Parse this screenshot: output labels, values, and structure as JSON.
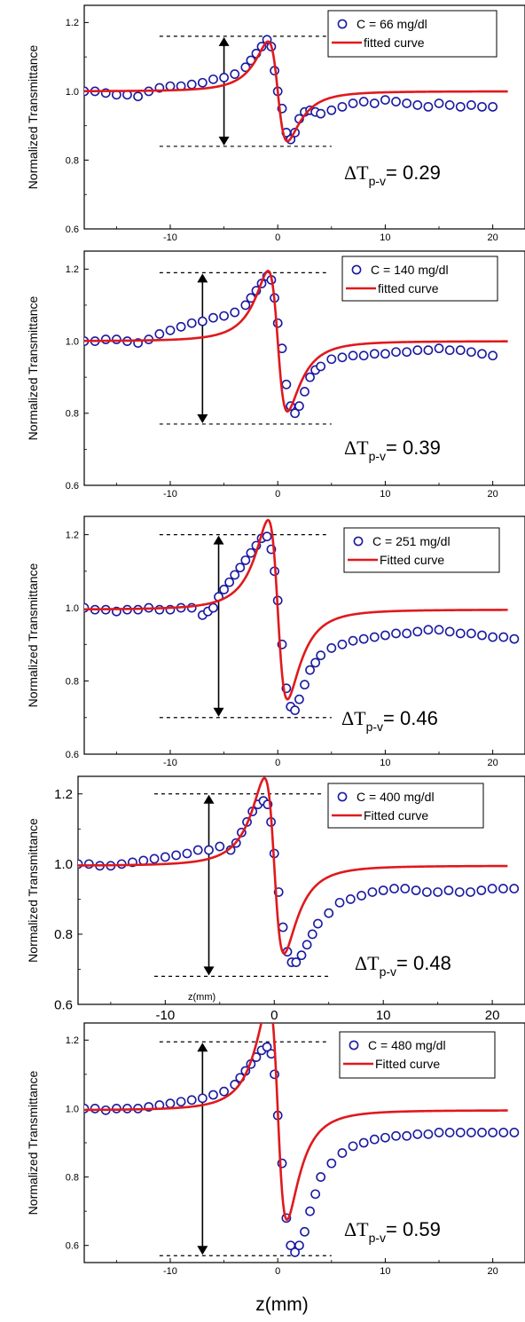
{
  "figure": {
    "xlabel": "z(mm)",
    "panel4_inline_xlabel": "z(mm)"
  },
  "chart_data": [
    {
      "type": "scatter",
      "ylabel": "Normalized Transmittance",
      "xlim": [
        -18,
        23
      ],
      "ylim": [
        0.6,
        1.25
      ],
      "xticks": [
        -10,
        0,
        10,
        20
      ],
      "yticks": [
        0.6,
        0.8,
        1.0,
        1.2
      ],
      "ytick_labels": [
        "0.6",
        "0.8",
        "1.0",
        "1.2"
      ],
      "legend": [
        "C = 66 mg/dl",
        "fitted curve"
      ],
      "annotation": {
        "symbol": "ΔT",
        "subscript": "p-v",
        "value": "= 0.29"
      },
      "peak_line_y": 1.16,
      "valley_line_y": 0.84,
      "arrow_x": -5,
      "series": [
        {
          "name": "C = 66 mg/dl",
          "kind": "markers",
          "color": "#1a1aa0",
          "x": [
            -18,
            -17,
            -16,
            -15,
            -14,
            -13,
            -12,
            -11,
            -10,
            -9,
            -8,
            -7,
            -6,
            -5,
            -4,
            -3,
            -2.5,
            -2,
            -1.5,
            -1,
            -0.6,
            -0.3,
            0,
            0.4,
            0.8,
            1.2,
            1.6,
            2,
            2.5,
            3,
            3.5,
            4,
            5,
            6,
            7,
            8,
            9,
            10,
            11,
            12,
            13,
            14,
            15,
            16,
            17,
            18,
            19,
            20
          ],
          "y": [
            1.0,
            1.0,
            0.995,
            0.99,
            0.99,
            0.985,
            1.0,
            1.01,
            1.015,
            1.015,
            1.02,
            1.025,
            1.035,
            1.04,
            1.05,
            1.07,
            1.09,
            1.11,
            1.13,
            1.15,
            1.13,
            1.06,
            1.0,
            0.95,
            0.88,
            0.86,
            0.88,
            0.92,
            0.94,
            0.945,
            0.94,
            0.935,
            0.945,
            0.955,
            0.965,
            0.97,
            0.965,
            0.975,
            0.97,
            0.965,
            0.96,
            0.955,
            0.965,
            0.96,
            0.955,
            0.96,
            0.955,
            0.955
          ]
        },
        {
          "name": "fitted curve",
          "kind": "line",
          "color": "#e0191c",
          "center": 0,
          "z0": 1.05,
          "dT": 0.29,
          "base": 1.0
        }
      ]
    },
    {
      "type": "scatter",
      "ylabel": "Normalized Transmittance",
      "xlim": [
        -18,
        23
      ],
      "ylim": [
        0.6,
        1.25
      ],
      "xticks": [
        -10,
        0,
        10,
        20
      ],
      "yticks": [
        0.6,
        0.8,
        1.0,
        1.2
      ],
      "ytick_labels": [
        "0.6",
        "0.8",
        "1.0",
        "1.2"
      ],
      "legend": [
        "C = 140 mg/dl",
        "fitted curve"
      ],
      "annotation": {
        "symbol": "ΔT",
        "subscript": "p-v",
        "value": "= 0.39"
      },
      "peak_line_y": 1.19,
      "valley_line_y": 0.77,
      "arrow_x": -7,
      "series": [
        {
          "name": "C = 140 mg/dl",
          "kind": "markers",
          "color": "#1a1aa0",
          "x": [
            -18,
            -17,
            -16,
            -15,
            -14,
            -13,
            -12,
            -11,
            -10,
            -9,
            -8,
            -7,
            -6,
            -5,
            -4,
            -3,
            -2.5,
            -2,
            -1.5,
            -1,
            -0.6,
            -0.3,
            0,
            0.4,
            0.8,
            1.2,
            1.6,
            2,
            2.5,
            3,
            3.5,
            4,
            5,
            6,
            7,
            8,
            9,
            10,
            11,
            12,
            13,
            14,
            15,
            16,
            17,
            18,
            19,
            20
          ],
          "y": [
            1.0,
            1.0,
            1.005,
            1.005,
            1.0,
            0.995,
            1.005,
            1.02,
            1.03,
            1.04,
            1.05,
            1.055,
            1.065,
            1.07,
            1.08,
            1.1,
            1.12,
            1.14,
            1.16,
            1.18,
            1.17,
            1.12,
            1.05,
            0.98,
            0.88,
            0.82,
            0.8,
            0.82,
            0.86,
            0.9,
            0.92,
            0.93,
            0.95,
            0.955,
            0.96,
            0.96,
            0.965,
            0.965,
            0.97,
            0.97,
            0.975,
            0.975,
            0.98,
            0.975,
            0.975,
            0.97,
            0.965,
            0.96
          ]
        },
        {
          "name": "fitted curve",
          "kind": "line",
          "color": "#e0191c",
          "center": 0,
          "z0": 1.05,
          "dT": 0.39,
          "base": 1.0
        }
      ]
    },
    {
      "type": "scatter",
      "ylabel": "Normalized Transmittance",
      "xlim": [
        -18,
        23
      ],
      "ylim": [
        0.6,
        1.25
      ],
      "xticks": [
        -10,
        0,
        10,
        20
      ],
      "yticks": [
        0.6,
        0.8,
        1.0,
        1.2
      ],
      "ytick_labels": [
        "0.6",
        "0.8",
        "1.0",
        "1.2"
      ],
      "legend": [
        "C = 251 mg/dl",
        "Fitted curve"
      ],
      "annotation": {
        "symbol": "ΔT",
        "subscript": "p-v",
        "value": "= 0.46"
      },
      "peak_line_y": 1.2,
      "valley_line_y": 0.7,
      "arrow_x": -5.5,
      "series": [
        {
          "name": "C = 251 mg/dl",
          "kind": "markers",
          "color": "#1a1aa0",
          "x": [
            -18,
            -17,
            -16,
            -15,
            -14,
            -13,
            -12,
            -11,
            -10,
            -9,
            -8,
            -7,
            -6.5,
            -6,
            -5.5,
            -5,
            -4.5,
            -4,
            -3.5,
            -3,
            -2.5,
            -2,
            -1.5,
            -1,
            -0.6,
            -0.3,
            0,
            0.4,
            0.8,
            1.2,
            1.6,
            2,
            2.5,
            3,
            3.5,
            4,
            5,
            6,
            7,
            8,
            9,
            10,
            11,
            12,
            13,
            14,
            15,
            16,
            17,
            18,
            19,
            20,
            21,
            22
          ],
          "y": [
            1.0,
            0.995,
            0.995,
            0.99,
            0.995,
            0.995,
            1.0,
            0.995,
            0.995,
            1.0,
            1.0,
            0.98,
            0.99,
            1.0,
            1.03,
            1.05,
            1.07,
            1.09,
            1.11,
            1.13,
            1.15,
            1.17,
            1.19,
            1.195,
            1.16,
            1.1,
            1.02,
            0.9,
            0.78,
            0.73,
            0.72,
            0.75,
            0.79,
            0.83,
            0.85,
            0.87,
            0.89,
            0.9,
            0.91,
            0.915,
            0.92,
            0.925,
            0.93,
            0.93,
            0.935,
            0.94,
            0.94,
            0.935,
            0.93,
            0.93,
            0.925,
            0.92,
            0.92,
            0.915
          ]
        },
        {
          "name": "Fitted curve",
          "kind": "line",
          "color": "#e0191c",
          "center": 0,
          "z0": 1.05,
          "dT": 0.49,
          "base": 0.995
        }
      ]
    },
    {
      "type": "scatter",
      "ylabel": "Normalized Transmittance",
      "xlim": [
        -18,
        23
      ],
      "ylim": [
        0.6,
        1.25
      ],
      "xticks": [
        -10,
        0,
        10,
        20
      ],
      "yticks": [
        0.6,
        0.8,
        1.0,
        1.2
      ],
      "ytick_labels": [
        "0.6",
        "0.8",
        "1.0",
        "1.2"
      ],
      "legend": [
        "C = 400 mg/dl",
        "Fitted curve"
      ],
      "annotation": {
        "symbol": "ΔT",
        "subscript": "p-v",
        "value": "= 0.48"
      },
      "peak_line_y": 1.2,
      "valley_line_y": 0.68,
      "arrow_x": -6,
      "series": [
        {
          "name": "C = 400 mg/dl",
          "kind": "markers",
          "color": "#1a1aa0",
          "x": [
            -18,
            -17,
            -16,
            -15,
            -14,
            -13,
            -12,
            -11,
            -10,
            -9,
            -8,
            -7,
            -6,
            -5,
            -4,
            -3.5,
            -3,
            -2.5,
            -2,
            -1.5,
            -1,
            -0.6,
            -0.3,
            0,
            0.4,
            0.8,
            1.2,
            1.6,
            2,
            2.5,
            3,
            3.5,
            4,
            5,
            6,
            7,
            8,
            9,
            10,
            11,
            12,
            13,
            14,
            15,
            16,
            17,
            18,
            19,
            20,
            21,
            22
          ],
          "y": [
            1.0,
            1.0,
            0.995,
            0.995,
            1.0,
            1.005,
            1.01,
            1.015,
            1.02,
            1.025,
            1.03,
            1.04,
            1.04,
            1.05,
            1.04,
            1.06,
            1.09,
            1.12,
            1.15,
            1.17,
            1.18,
            1.17,
            1.12,
            1.03,
            0.92,
            0.82,
            0.75,
            0.72,
            0.72,
            0.74,
            0.77,
            0.8,
            0.83,
            0.86,
            0.89,
            0.9,
            0.91,
            0.92,
            0.925,
            0.93,
            0.93,
            0.925,
            0.92,
            0.92,
            0.925,
            0.92,
            0.92,
            0.925,
            0.93,
            0.93,
            0.93
          ]
        },
        {
          "name": "Fitted curve",
          "kind": "line",
          "color": "#e0191c",
          "center": 0,
          "z0": 1.05,
          "dT": 0.5,
          "base": 0.995
        }
      ]
    },
    {
      "type": "scatter",
      "ylabel": "Normalized Transmittance",
      "xlim": [
        -18,
        23
      ],
      "ylim": [
        0.55,
        1.25
      ],
      "xticks": [
        -10,
        0,
        10,
        20
      ],
      "yticks": [
        0.6,
        0.8,
        1.0,
        1.2
      ],
      "ytick_labels": [
        "0.6",
        "0.8",
        "1.0",
        "1.2"
      ],
      "legend": [
        "C = 480 mg/dl",
        "Fitted curve"
      ],
      "annotation": {
        "symbol": "ΔT",
        "subscript": "p-v",
        "value": "= 0.59"
      },
      "peak_line_y": 1.195,
      "valley_line_y": 0.57,
      "arrow_x": -7,
      "series": [
        {
          "name": "C = 480 mg/dl",
          "kind": "markers",
          "color": "#1a1aa0",
          "x": [
            -18,
            -17,
            -16,
            -15,
            -14,
            -13,
            -12,
            -11,
            -10,
            -9,
            -8,
            -7,
            -6,
            -5,
            -4,
            -3.5,
            -3,
            -2.5,
            -2,
            -1.5,
            -1,
            -0.6,
            -0.3,
            0,
            0.4,
            0.8,
            1.2,
            1.6,
            2,
            2.5,
            3,
            3.5,
            4,
            5,
            6,
            7,
            8,
            9,
            10,
            11,
            12,
            13,
            14,
            15,
            16,
            17,
            18,
            19,
            20,
            21,
            22
          ],
          "y": [
            1.0,
            1.0,
            0.995,
            1.0,
            1.0,
            1.0,
            1.005,
            1.01,
            1.015,
            1.02,
            1.025,
            1.03,
            1.04,
            1.05,
            1.07,
            1.09,
            1.11,
            1.13,
            1.15,
            1.17,
            1.18,
            1.16,
            1.1,
            0.98,
            0.84,
            0.68,
            0.6,
            0.58,
            0.6,
            0.64,
            0.7,
            0.75,
            0.8,
            0.84,
            0.87,
            0.89,
            0.9,
            0.91,
            0.915,
            0.92,
            0.92,
            0.925,
            0.925,
            0.93,
            0.93,
            0.93,
            0.93,
            0.93,
            0.93,
            0.93,
            0.93
          ]
        },
        {
          "name": "Fitted curve",
          "kind": "line",
          "color": "#e0191c",
          "center": 0,
          "z0": 1.0,
          "dT": 0.64,
          "base": 0.995
        }
      ]
    }
  ]
}
